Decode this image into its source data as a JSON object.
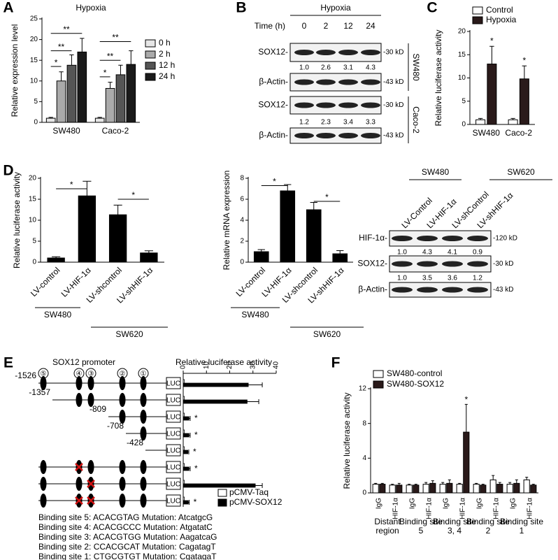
{
  "chart_data": [
    {
      "type": "bar",
      "panel": "A",
      "title": "Hypoxia",
      "ylabel": "Relative expression level",
      "categories": [
        "SW480",
        "Caco-2"
      ],
      "series": [
        {
          "name": "0 h",
          "color": "#e6e6e6",
          "values": [
            1,
            1
          ],
          "errors": [
            0.2,
            0.2
          ]
        },
        {
          "name": "2 h",
          "color": "#aaaaaa",
          "values": [
            10,
            8.2
          ],
          "errors": [
            2.2,
            1.5
          ]
        },
        {
          "name": "12 h",
          "color": "#555555",
          "values": [
            13.8,
            11.5
          ],
          "errors": [
            2.5,
            2.3
          ]
        },
        {
          "name": "24 h",
          "color": "#1a1a1a",
          "values": [
            17,
            14
          ],
          "errors": [
            3.3,
            3.3
          ]
        }
      ],
      "ylim": [
        0,
        25
      ],
      "yticks": [
        0,
        5,
        10,
        15,
        20,
        25
      ],
      "annotations": [
        "*",
        "**",
        "**",
        "*",
        "**",
        "**"
      ]
    },
    {
      "type": "bar",
      "panel": "C",
      "ylabel": "Relative luciferase activity",
      "categories": [
        "SW480",
        "Caco-2"
      ],
      "series": [
        {
          "name": "Control",
          "color": "#ffffff",
          "values": [
            1,
            1
          ],
          "errors": [
            0.3,
            0.3
          ]
        },
        {
          "name": "Hypoxia",
          "color": "#2a1a1a",
          "values": [
            13,
            9.8
          ],
          "errors": [
            3.8,
            2.8
          ]
        }
      ],
      "ylim": [
        0,
        20
      ],
      "yticks": [
        0,
        5,
        10,
        15,
        20
      ],
      "annotations": [
        "*",
        "*"
      ]
    },
    {
      "type": "bar",
      "panel": "D",
      "ylabel": "Relative luciferase activity",
      "categories": [
        "LV-control",
        "LV-HIF-1α",
        "LV-shcontrol",
        "LV-shHIF-1α"
      ],
      "values": [
        1,
        15.8,
        11.3,
        2.2
      ],
      "errors": [
        0.3,
        3.5,
        2.3,
        0.5
      ],
      "color": "#000000",
      "ylim": [
        0,
        20
      ],
      "yticks": [
        0,
        5,
        10,
        15,
        20
      ],
      "groups": [
        "SW480",
        "SW620"
      ],
      "annotations": [
        "*",
        "*"
      ]
    },
    {
      "type": "bar",
      "ylabel": "Relative mRNA expression",
      "categories": [
        "LV-control",
        "LV-HIF-1α",
        "LV-shcontrol",
        "LV-shHIF-1α"
      ],
      "values": [
        1,
        6.8,
        5,
        0.8
      ],
      "errors": [
        0.2,
        0.6,
        0.7,
        0.3
      ],
      "color": "#000000",
      "ylim": [
        0,
        8
      ],
      "yticks": [
        0,
        2,
        4,
        6,
        8
      ],
      "groups": [
        "SW480",
        "SW620"
      ],
      "annotations": [
        "*",
        "*"
      ]
    },
    {
      "type": "barh",
      "panel": "E",
      "title": "Relative luciferase activity",
      "categories": [
        "-1526",
        "-1357",
        "-809",
        "-708",
        "-428",
        null,
        null,
        null
      ],
      "series": [
        {
          "name": "pCMV-Taq",
          "color": "#ffffff",
          "values": [
            0.5,
            0.5,
            0.5,
            0.5,
            0.5,
            0.5,
            0.5,
            0.5
          ]
        },
        {
          "name": "pCMV-SOX12",
          "color": "#000000",
          "values": [
            28,
            27.5,
            2.5,
            2.5,
            2,
            2.5,
            31,
            2.2
          ],
          "errors": [
            6,
            5,
            0.5,
            0.5,
            0.4,
            0.5,
            3,
            0.4
          ]
        }
      ],
      "xlim": [
        0,
        40
      ],
      "xticks": [
        0,
        10,
        20,
        30,
        40
      ],
      "annotations": [
        "*",
        "*",
        "*",
        "*",
        "*"
      ]
    },
    {
      "type": "bar",
      "panel": "F",
      "ylabel": "Relative luciferase activity",
      "categories": [
        "IgG",
        "HIF-1α",
        "IgG",
        "HIF-1α",
        "IgG",
        "HIF-1α",
        "IgG",
        "HIF-1α",
        "IgG",
        "HIF-1α"
      ],
      "series": [
        {
          "name": "SW480-control",
          "color": "#ffffff",
          "values": [
            1.0,
            0.9,
            0.9,
            1.0,
            1.0,
            1.0,
            1.0,
            1.5,
            1.0,
            1.5
          ],
          "errors": [
            0.1,
            0.1,
            0.1,
            0.2,
            0.2,
            0.1,
            0.1,
            0.5,
            0.2,
            0.3
          ]
        },
        {
          "name": "SW480-SOX12",
          "color": "#2a1a1a",
          "values": [
            1.0,
            0.9,
            0.9,
            1.1,
            1.1,
            7.0,
            0.9,
            1.0,
            1.1,
            0.9
          ],
          "errors": [
            0.1,
            0.2,
            0.1,
            0.3,
            0.4,
            3.2,
            0.1,
            0.2,
            0.4,
            0.1
          ]
        }
      ],
      "ylim": [
        0,
        12
      ],
      "yticks": [
        0,
        4,
        8,
        12
      ],
      "groups": [
        "Distant region",
        "Binding site 5",
        "Binding site 3, 4",
        "Binding site 2",
        "Binding site 1"
      ],
      "annotations": [
        "*"
      ]
    }
  ],
  "blot_b": {
    "panel": "B",
    "title": "Hypoxia",
    "lane_header": "Time (h)",
    "lanes": [
      "0",
      "2",
      "12",
      "24"
    ],
    "rows": [
      {
        "label": "SOX12-",
        "size": "-30 kD",
        "quant": [
          "1.0",
          "2.6",
          "3.1",
          "4.3"
        ]
      },
      {
        "label": "β-Actin-",
        "size": "-43 kD"
      },
      {
        "label": "SOX12-",
        "size": "-30 kD",
        "quant": [
          "1.2",
          "2.3",
          "3.4",
          "3.3"
        ]
      },
      {
        "label": "β-Actin-",
        "size": "-43 kD"
      }
    ],
    "cell_lines": [
      "SW480",
      "Caco-2"
    ]
  },
  "blot_d": {
    "lanes": [
      "LV-Control",
      "LV-HIF-1α",
      "LV-shControl",
      "LV-shHIF-1α"
    ],
    "cell_lines": [
      "SW480",
      "SW620"
    ],
    "rows": [
      {
        "label": "HIF-1α-",
        "size": "-120 kD",
        "quant": [
          "1.0",
          "4.3",
          "4.1",
          "0.9"
        ]
      },
      {
        "label": "SOX12-",
        "size": "-30 kD",
        "quant": [
          "1.0",
          "3.5",
          "3.6",
          "1.2"
        ]
      },
      {
        "label": "β-Actin-",
        "size": "-43 kD"
      }
    ]
  },
  "promoter": {
    "title": "SOX12 promoter",
    "sites": [
      "⑤",
      "④",
      "③",
      "②",
      "①"
    ],
    "reporter": "LUC",
    "binding_sites": [
      "Binding site 5: ACACGTAG  Mutation: AtcatgcG",
      "Binding site 4: ACACGCCC  Mutation: AtgatatC",
      "Binding site 3: ACACGTGG  Mutation: AagatcaG",
      "Binding site 2: CCACGCAT  Mutation: CagatagT",
      "Binding site 1: CTGCGTGT  Mutation: CgatagaT"
    ]
  }
}
